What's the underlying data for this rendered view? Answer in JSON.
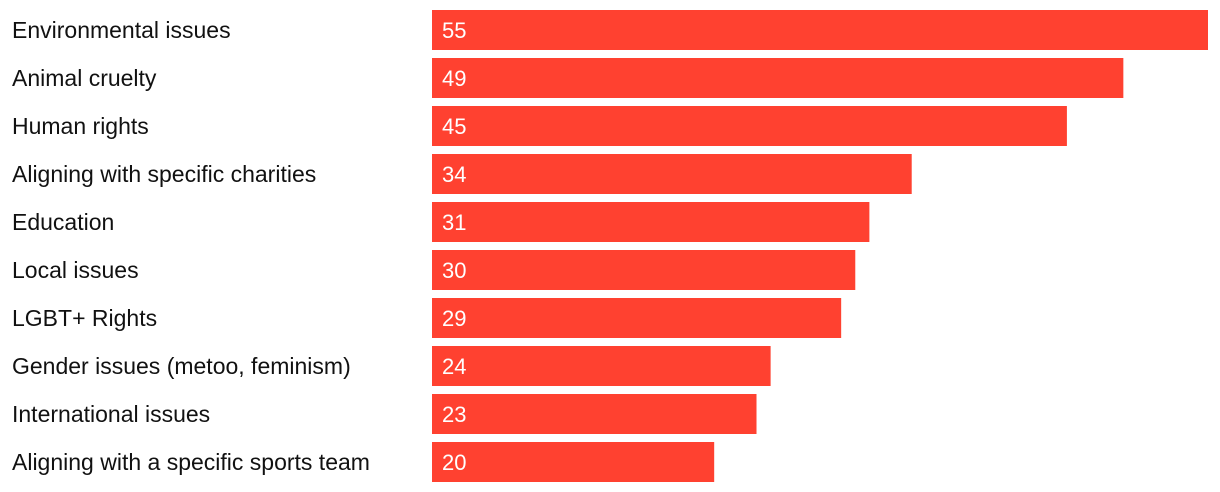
{
  "chart_data": {
    "type": "bar",
    "orientation": "horizontal",
    "title": "",
    "xlabel": "",
    "ylabel": "",
    "categories": [
      "Environmental issues",
      "Animal cruelty",
      "Human rights",
      "Aligning with specific charities",
      "Education",
      "Local issues",
      "LGBT+ Rights",
      "Gender issues (metoo, feminism)",
      "International issues",
      "Aligning with a specific sports team"
    ],
    "values": [
      55,
      49,
      45,
      34,
      31,
      30,
      29,
      24,
      23,
      20
    ],
    "xlim": [
      0,
      55
    ],
    "grid": false,
    "legend": "none",
    "bar_color": "#ff4130",
    "value_label_color": "#ffffff",
    "category_label_color": "#111111"
  }
}
